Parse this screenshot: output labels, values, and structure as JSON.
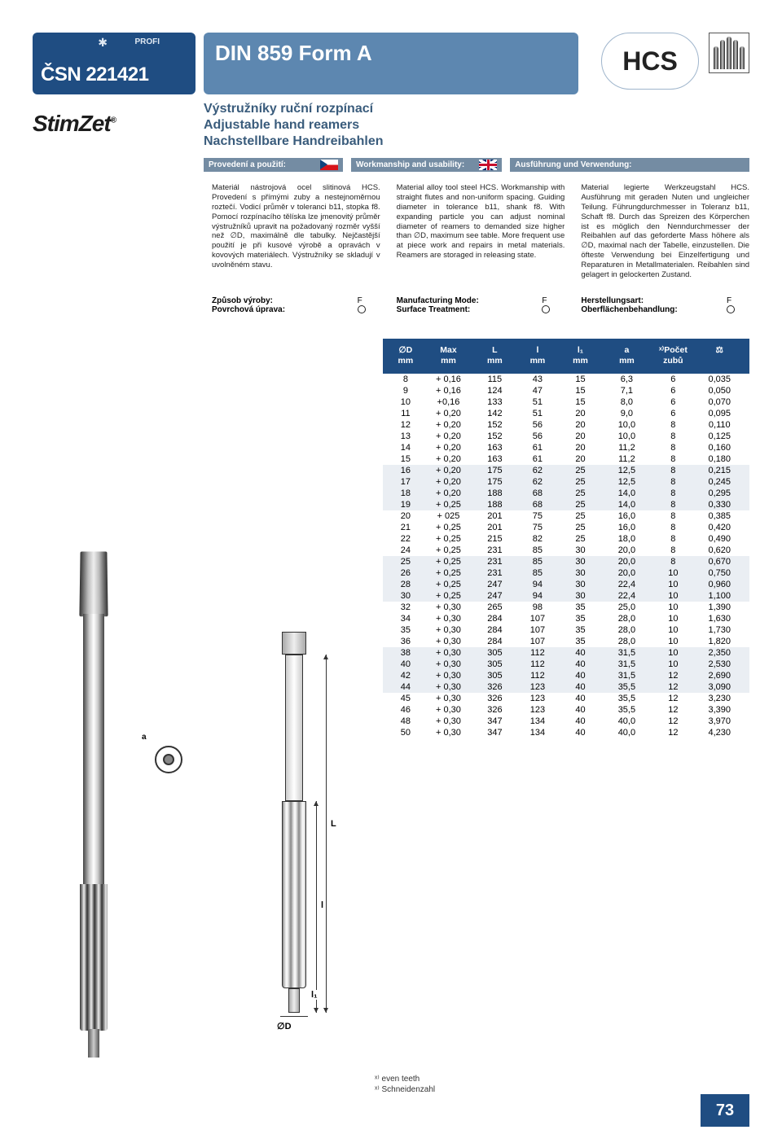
{
  "header": {
    "profi": "PROFI",
    "csn": "ČSN 221421",
    "din": "DIN 859 Form A",
    "brand": "StimZet",
    "hcs": "HCS",
    "subtitle_cz": "Výstružníky ruční rozpínací",
    "subtitle_en": "Adjustable hand reamers",
    "subtitle_de": "Nachstellbare Handreibahlen"
  },
  "labels": {
    "cz": "Provedení a použití:",
    "en": "Workmanship and usability:",
    "de": "Ausführung und Verwendung:"
  },
  "desc": {
    "cz": "Materiál nástrojová ocel slitinová HCS. Provedení s přímými zuby a nestejnoměrnou roztečí. Vodicí průměr v toleranci b11, stopka f8. Pomocí rozpínacího tělíska lze jmenovitý průměr výstružníků upravit na požadovaný rozměr vyšší než ∅D, maximálně dle tabulky. Nejčastější použití je při kusové výrobě a opravách v kovových materiálech. Výstružníky se skladují v uvolněném stavu.",
    "en": "Material alloy tool steel HCS. Workmanship with straight flutes and non-uniform spacing. Guiding diameter in tolerance b11, shank f8. With expanding particle you can adjust nominal diameter of reamers to demanded size higher than ∅D, maximum see table. More frequent use at piece work and repairs in metal materials. Reamers are storaged in releasing state.",
    "de": "Material legierte Werkzeugstahl HCS. Ausführung mit geraden Nuten und ungleicher Teilung. Führungdurchmesser in Toleranz b11, Schaft f8. Durch das Spreizen des Körperchen ist es möglich den Nenndurchmesser der Reibahlen auf das geforderte Mass höhere als ∅D, maximal nach der Tabelle, einzustellen. Die öfteste Verwendung bei Einzelfertigung und Reparaturen in Metallmaterialen. Reibahlen sind gelagert in gelockerten Zustand."
  },
  "mode": {
    "cz_l1": "Způsob výroby:",
    "cz_l2": "Povrchová úprava:",
    "en_l1": "Manufacturing Mode:",
    "en_l2": "Surface Treatment:",
    "de_l1": "Herstellungsart:",
    "de_l2": "Oberflächenbehandlung:",
    "v1": "F"
  },
  "table": {
    "headers": {
      "c1a": "∅D",
      "c1b": "mm",
      "c2a": "Max",
      "c2b": "mm",
      "c3a": "L",
      "c3b": "mm",
      "c4a": "l",
      "c4b": "mm",
      "c5a": "l₁",
      "c5b": "mm",
      "c6a": "a",
      "c6b": "mm",
      "c7a": "ˣ⁾Počet",
      "c7b": "zubů",
      "c8": ""
    },
    "rows": [
      {
        "d": "8",
        "max": "+ 0,16",
        "L": "115",
        "l": "43",
        "l1": "15",
        "a": "6,3",
        "z": "6",
        "kg": "0,035"
      },
      {
        "d": "9",
        "max": "+ 0,16",
        "L": "124",
        "l": "47",
        "l1": "15",
        "a": "7,1",
        "z": "6",
        "kg": "0,050"
      },
      {
        "d": "10",
        "max": "+0,16",
        "L": "133",
        "l": "51",
        "l1": "15",
        "a": "8,0",
        "z": "6",
        "kg": "0,070"
      },
      {
        "d": "11",
        "max": "+ 0,20",
        "L": "142",
        "l": "51",
        "l1": "20",
        "a": "9,0",
        "z": "6",
        "kg": "0,095"
      },
      {
        "d": "12",
        "max": "+ 0,20",
        "L": "152",
        "l": "56",
        "l1": "20",
        "a": "10,0",
        "z": "8",
        "kg": "0,110"
      },
      {
        "d": "13",
        "max": "+ 0,20",
        "L": "152",
        "l": "56",
        "l1": "20",
        "a": "10,0",
        "z": "8",
        "kg": "0,125"
      },
      {
        "d": "14",
        "max": "+ 0,20",
        "L": "163",
        "l": "61",
        "l1": "20",
        "a": "11,2",
        "z": "8",
        "kg": "0,160"
      },
      {
        "d": "15",
        "max": "+ 0,20",
        "L": "163",
        "l": "61",
        "l1": "20",
        "a": "11,2",
        "z": "8",
        "kg": "0,180"
      },
      {
        "d": "16",
        "max": "+ 0,20",
        "L": "175",
        "l": "62",
        "l1": "25",
        "a": "12,5",
        "z": "8",
        "kg": "0,215",
        "hl": true
      },
      {
        "d": "17",
        "max": "+ 0,20",
        "L": "175",
        "l": "62",
        "l1": "25",
        "a": "12,5",
        "z": "8",
        "kg": "0,245",
        "hl": true
      },
      {
        "d": "18",
        "max": "+ 0,20",
        "L": "188",
        "l": "68",
        "l1": "25",
        "a": "14,0",
        "z": "8",
        "kg": "0,295",
        "hl": true
      },
      {
        "d": "19",
        "max": "+ 0,25",
        "L": "188",
        "l": "68",
        "l1": "25",
        "a": "14,0",
        "z": "8",
        "kg": "0,330",
        "hl": true
      },
      {
        "d": "20",
        "max": "+ 025",
        "L": "201",
        "l": "75",
        "l1": "25",
        "a": "16,0",
        "z": "8",
        "kg": "0,385"
      },
      {
        "d": "21",
        "max": "+ 0,25",
        "L": "201",
        "l": "75",
        "l1": "25",
        "a": "16,0",
        "z": "8",
        "kg": "0,420"
      },
      {
        "d": "22",
        "max": "+ 0,25",
        "L": "215",
        "l": "82",
        "l1": "25",
        "a": "18,0",
        "z": "8",
        "kg": "0,490"
      },
      {
        "d": "24",
        "max": "+ 0,25",
        "L": "231",
        "l": "85",
        "l1": "30",
        "a": "20,0",
        "z": "8",
        "kg": "0,620"
      },
      {
        "d": "25",
        "max": "+ 0,25",
        "L": "231",
        "l": "85",
        "l1": "30",
        "a": "20,0",
        "z": "8",
        "kg": "0,670",
        "hl": true
      },
      {
        "d": "26",
        "max": "+ 0,25",
        "L": "231",
        "l": "85",
        "l1": "30",
        "a": "20,0",
        "z": "10",
        "kg": "0,750",
        "hl": true
      },
      {
        "d": "28",
        "max": "+ 0,25",
        "L": "247",
        "l": "94",
        "l1": "30",
        "a": "22,4",
        "z": "10",
        "kg": "0,960",
        "hl": true
      },
      {
        "d": "30",
        "max": "+ 0,25",
        "L": "247",
        "l": "94",
        "l1": "30",
        "a": "22,4",
        "z": "10",
        "kg": "1,100",
        "hl": true
      },
      {
        "d": "32",
        "max": "+ 0,30",
        "L": "265",
        "l": "98",
        "l1": "35",
        "a": "25,0",
        "z": "10",
        "kg": "1,390"
      },
      {
        "d": "34",
        "max": "+ 0,30",
        "L": "284",
        "l": "107",
        "l1": "35",
        "a": "28,0",
        "z": "10",
        "kg": "1,630"
      },
      {
        "d": "35",
        "max": "+ 0,30",
        "L": "284",
        "l": "107",
        "l1": "35",
        "a": "28,0",
        "z": "10",
        "kg": "1,730"
      },
      {
        "d": "36",
        "max": "+ 0,30",
        "L": "284",
        "l": "107",
        "l1": "35",
        "a": "28,0",
        "z": "10",
        "kg": "1,820"
      },
      {
        "d": "38",
        "max": "+ 0,30",
        "L": "305",
        "l": "112",
        "l1": "40",
        "a": "31,5",
        "z": "10",
        "kg": "2,350",
        "hl": true
      },
      {
        "d": "40",
        "max": "+ 0,30",
        "L": "305",
        "l": "112",
        "l1": "40",
        "a": "31,5",
        "z": "10",
        "kg": "2,530",
        "hl": true
      },
      {
        "d": "42",
        "max": "+ 0,30",
        "L": "305",
        "l": "112",
        "l1": "40",
        "a": "31,5",
        "z": "12",
        "kg": "2,690",
        "hl": true
      },
      {
        "d": "44",
        "max": "+ 0,30",
        "L": "326",
        "l": "123",
        "l1": "40",
        "a": "35,5",
        "z": "12",
        "kg": "3,090",
        "hl": true
      },
      {
        "d": "45",
        "max": "+ 0,30",
        "L": "326",
        "l": "123",
        "l1": "40",
        "a": "35,5",
        "z": "12",
        "kg": "3,230"
      },
      {
        "d": "46",
        "max": "+ 0,30",
        "L": "326",
        "l": "123",
        "l1": "40",
        "a": "35,5",
        "z": "12",
        "kg": "3,390"
      },
      {
        "d": "48",
        "max": "+ 0,30",
        "L": "347",
        "l": "134",
        "l1": "40",
        "a": "40,0",
        "z": "12",
        "kg": "3,970"
      },
      {
        "d": "50",
        "max": "+ 0,30",
        "L": "347",
        "l": "134",
        "l1": "40",
        "a": "40,0",
        "z": "12",
        "kg": "4,230"
      }
    ]
  },
  "diagram": {
    "L": "L",
    "l": "l",
    "l1": "l₁",
    "D": "∅D",
    "a": "a"
  },
  "footnotes": {
    "en": "ˣ⁾ even teeth",
    "de": "ˣ⁾ Schneidenzahl"
  },
  "pagenum": "73"
}
